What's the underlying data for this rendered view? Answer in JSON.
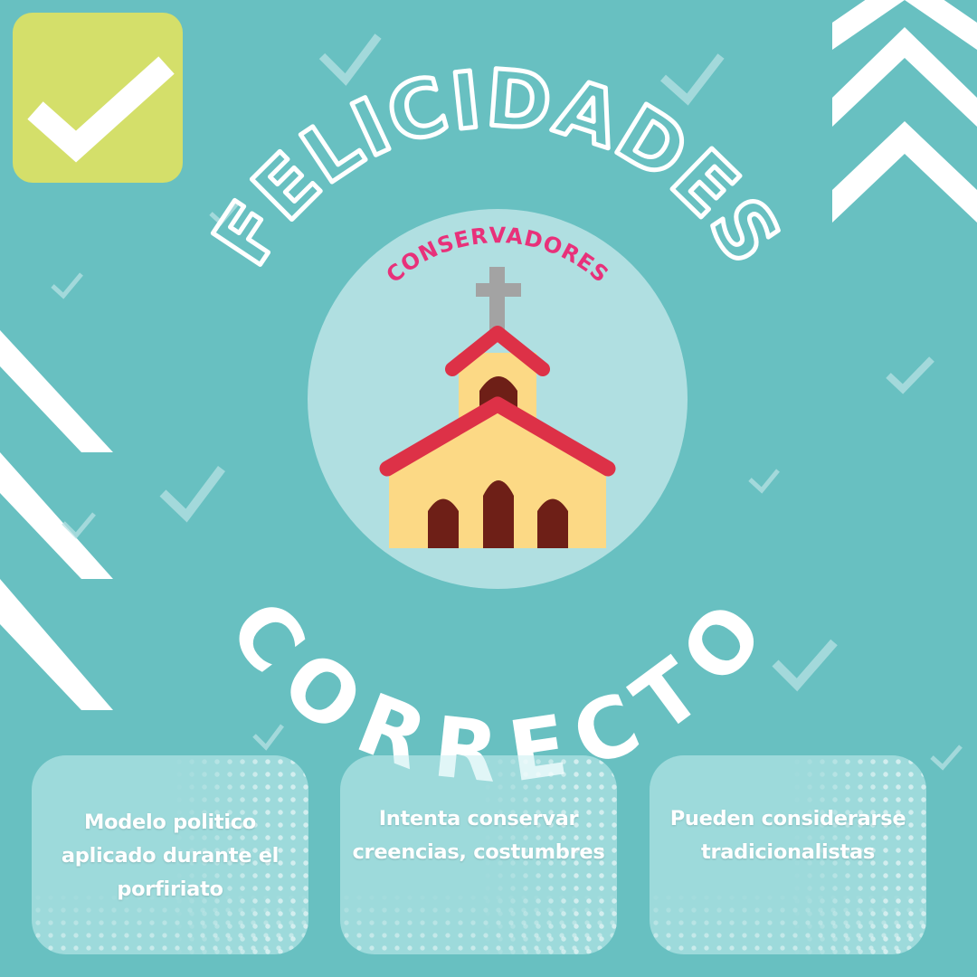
{
  "heading": {
    "arc_text": "FELICIDADES",
    "category": "CONSERVADORES",
    "result": "CORRECTO"
  },
  "cards": [
    {
      "text": "Modelo politico aplicado durante el porfiriato"
    },
    {
      "text": "Intenta conservar creencias, costumbres"
    },
    {
      "text": "Pueden considerarse tradicionalistas"
    }
  ],
  "colors": {
    "background": "#68c0c1",
    "checkbox": "#d4df6a",
    "circle": "#b0dfe1",
    "category_text": "#e8317a",
    "church_wall": "#fcd985",
    "church_roof": "#dd3147",
    "church_door": "#6e1f17",
    "cross": "#a3a3a3"
  },
  "icons": {
    "badge": "check-icon",
    "illustration": "church-icon"
  }
}
